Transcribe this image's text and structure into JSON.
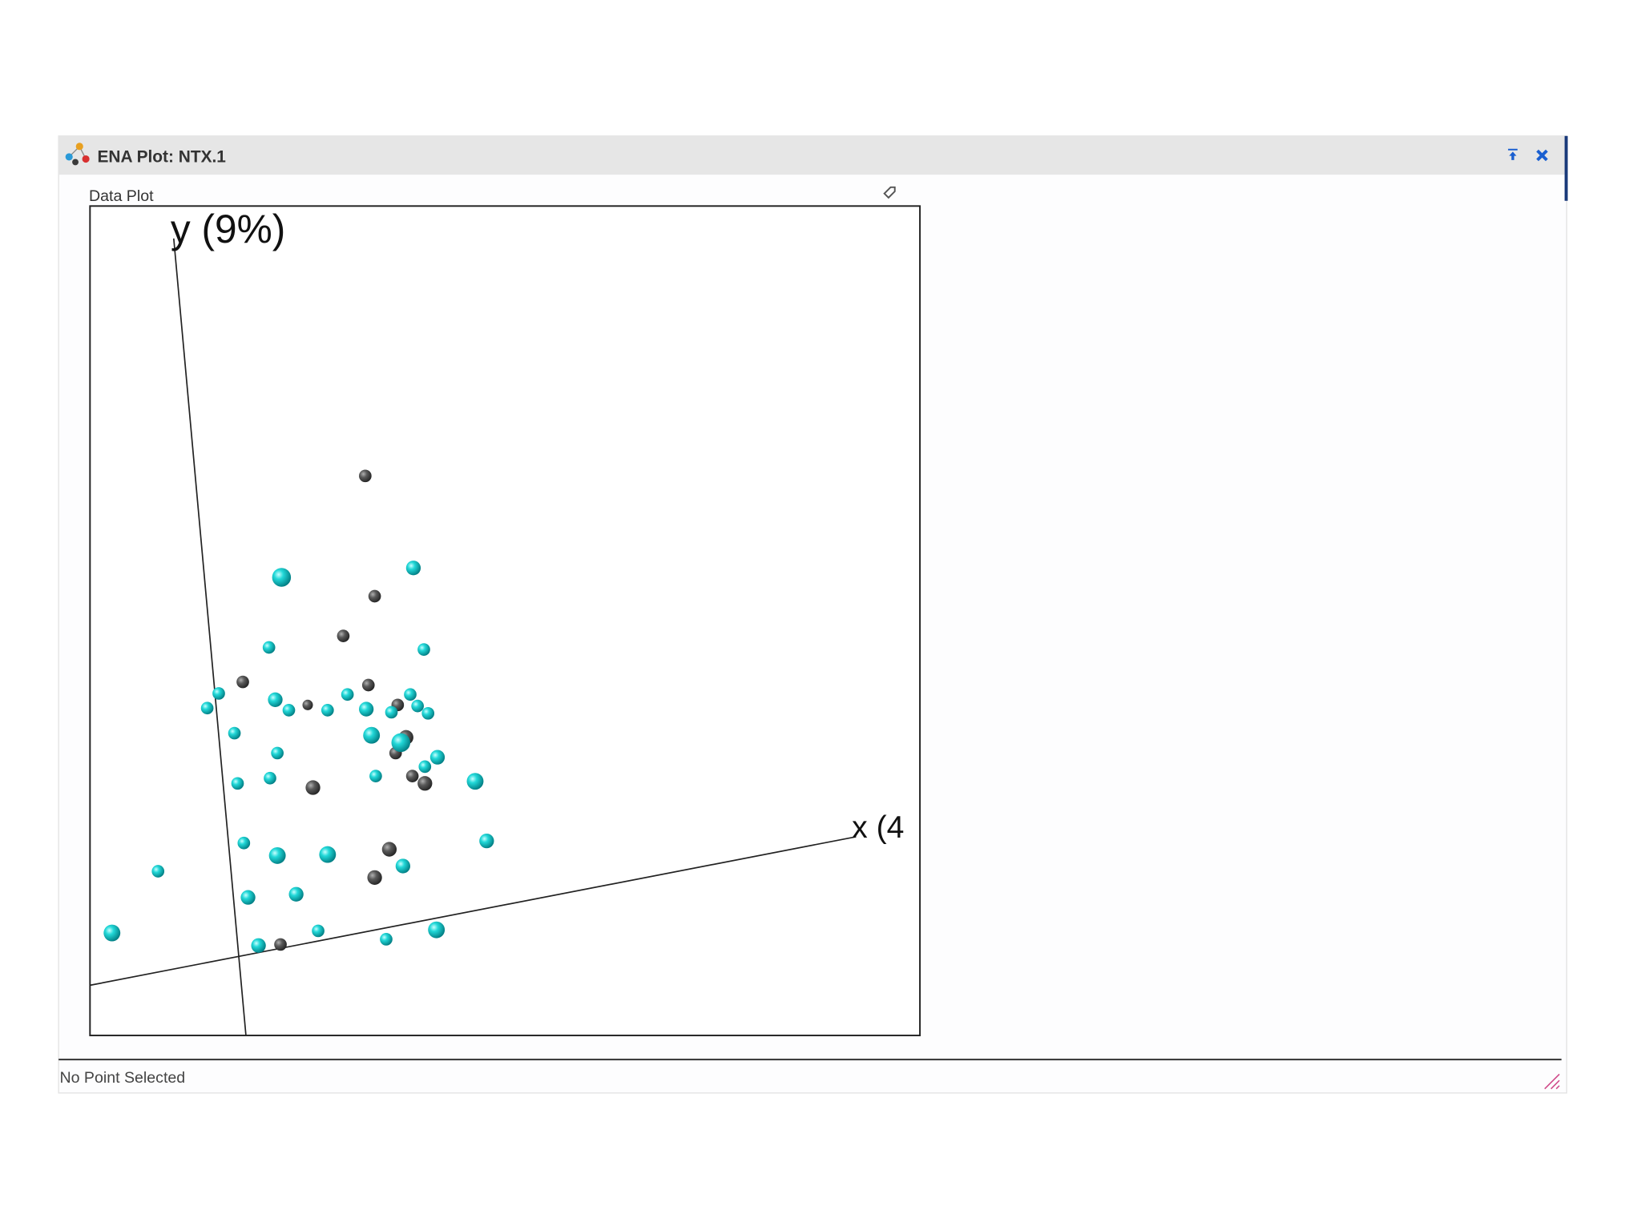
{
  "window": {
    "title": "ENA Plot: NTX.1",
    "panel_title": "Data Plot",
    "status": "No Point Selected"
  },
  "plot": {
    "y_axis_label": "y (9%)",
    "x_axis_label": "x (4"
  }
}
